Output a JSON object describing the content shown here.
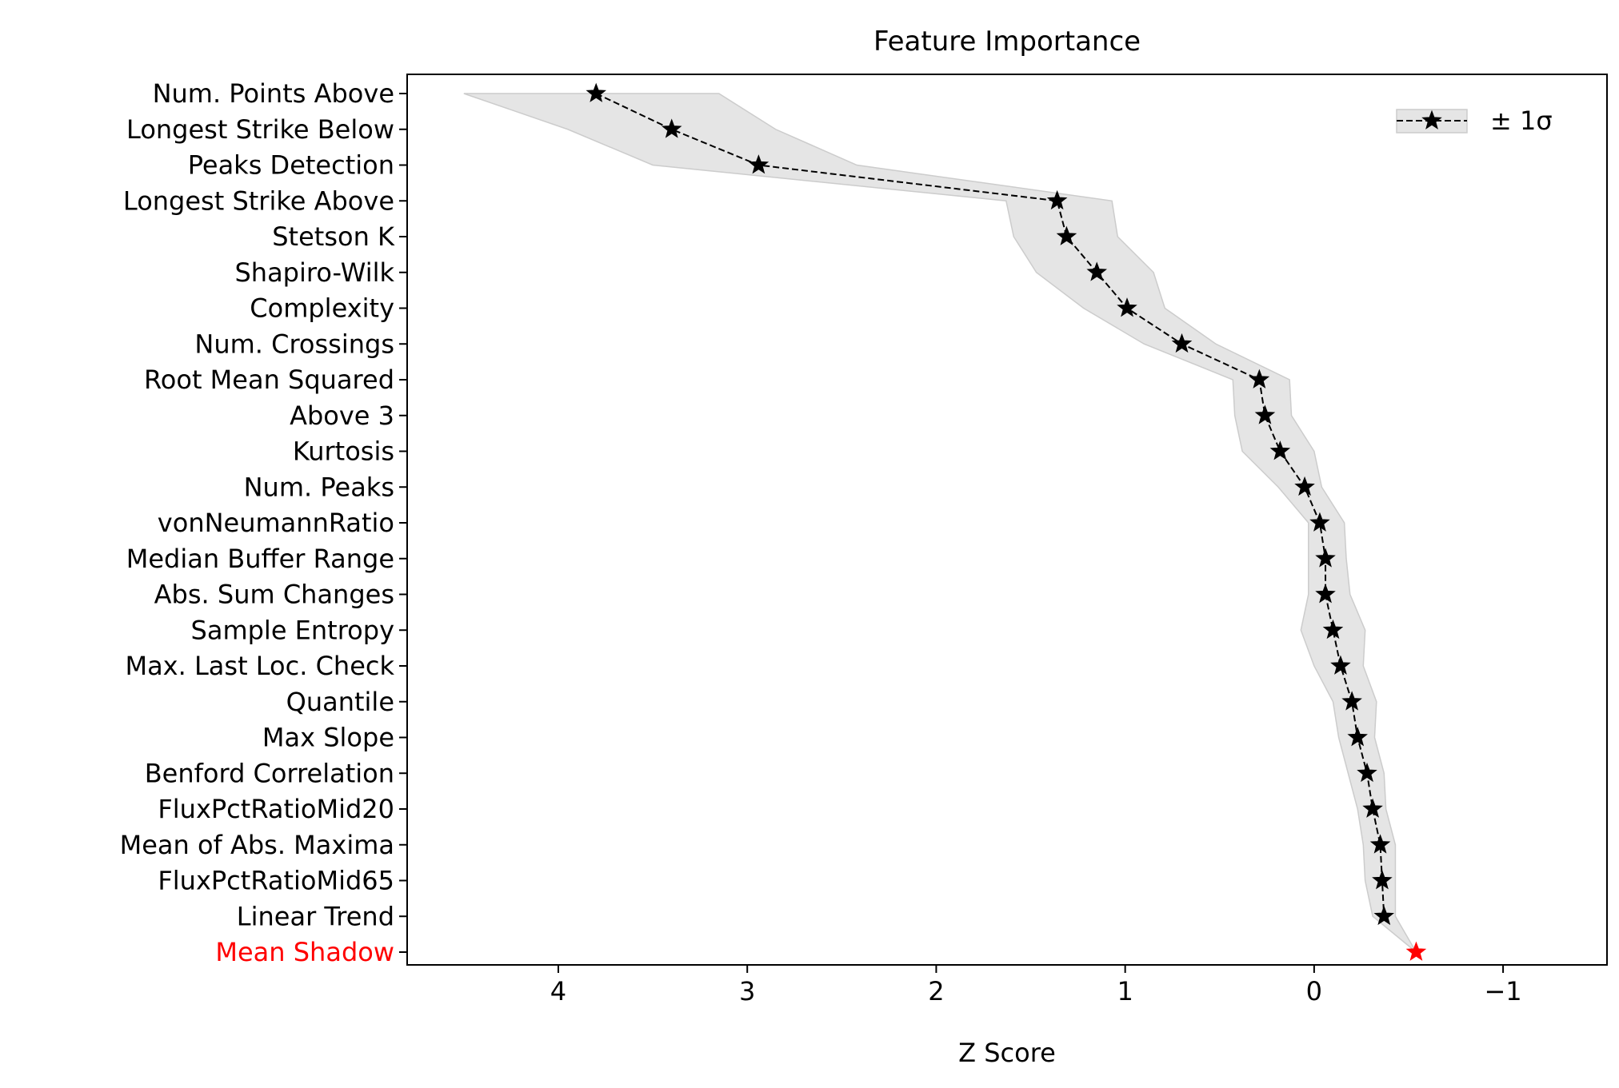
{
  "chart_data": {
    "type": "line",
    "title": "Feature Importance",
    "xlabel": "Z Score",
    "ylabel": "",
    "xlim": [
      4.8,
      -1.55
    ],
    "x_inverted": true,
    "xticks": [
      4,
      3,
      2,
      1,
      0,
      -1
    ],
    "xtick_labels": [
      "4",
      "3",
      "2",
      "1",
      "0",
      "−1"
    ],
    "grid": false,
    "legend_position": "top-right",
    "legend_entry": "± 1σ",
    "marker": "star",
    "line_style": "dashed",
    "colors": {
      "line": "#000000",
      "band": "#e5e5e5",
      "band_edge": "#cccccc",
      "shadow_feature": "#ff0000"
    },
    "features": [
      "Num. Points Above",
      "Longest Strike Below",
      "Peaks Detection",
      "Longest Strike Above",
      "Stetson K",
      "Shapiro-Wilk",
      "Complexity",
      "Num. Crossings",
      "Root Mean Squared",
      "Above 3",
      "Kurtosis",
      "Num. Peaks",
      "vonNeumannRatio",
      "Median Buffer Range",
      "Abs. Sum Changes",
      "Sample Entropy",
      "Max. Last Loc. Check",
      "Quantile",
      "Max Slope",
      "Benford Correlation",
      "FluxPctRatioMid20",
      "Mean of Abs. Maxima",
      "FluxPctRatioMid65",
      "Linear Trend",
      "Mean Shadow"
    ],
    "highlighted_feature": "Mean Shadow",
    "z_scores": [
      3.8,
      3.4,
      2.94,
      1.36,
      1.31,
      1.15,
      0.99,
      0.7,
      0.29,
      0.26,
      0.18,
      0.05,
      -0.03,
      -0.06,
      -0.06,
      -0.1,
      -0.14,
      -0.2,
      -0.23,
      -0.28,
      -0.31,
      -0.35,
      -0.36,
      -0.37,
      -0.54
    ],
    "band_lower": [
      3.15,
      2.85,
      2.42,
      1.07,
      1.04,
      0.85,
      0.79,
      0.52,
      0.13,
      0.12,
      0.0,
      -0.04,
      -0.16,
      -0.17,
      -0.19,
      -0.27,
      -0.26,
      -0.33,
      -0.32,
      -0.37,
      -0.38,
      -0.43,
      -0.43,
      -0.43,
      -0.54
    ],
    "band_upper": [
      4.5,
      3.95,
      3.5,
      1.63,
      1.59,
      1.47,
      1.22,
      0.9,
      0.43,
      0.42,
      0.38,
      0.19,
      0.03,
      0.03,
      0.03,
      0.07,
      0.0,
      -0.1,
      -0.13,
      -0.18,
      -0.23,
      -0.26,
      -0.27,
      -0.31,
      -0.54
    ]
  }
}
